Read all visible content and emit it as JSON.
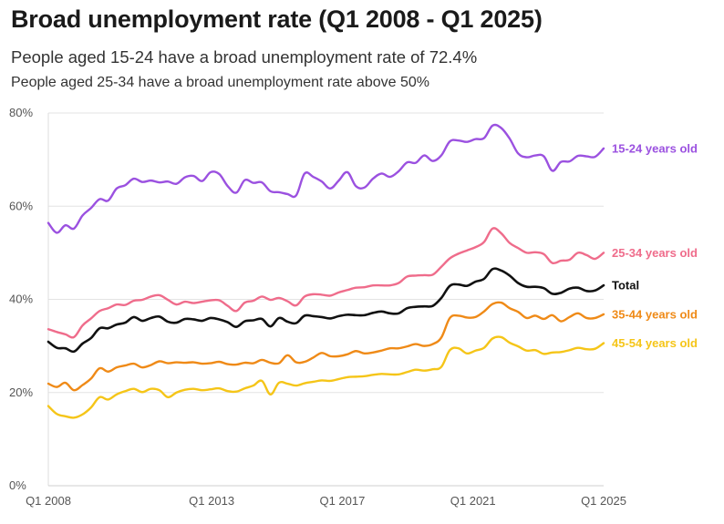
{
  "title": "Broad unemployment rate (Q1 2008 - Q1 2025)",
  "subtitle": "People aged 15-24 have a broad unemployment rate of 72.4%",
  "subtitle2": "People aged 25-34 have a broad unemployment rate above 50%",
  "chart_data": {
    "type": "line",
    "title": "Broad unemployment rate (Q1 2008 - Q1 2025)",
    "xlabel": "",
    "ylabel": "",
    "ylim": [
      0,
      80
    ],
    "grid": true,
    "x_start": 2008.0,
    "x_end": 2025.0,
    "x_ticks": [
      {
        "value": 2008,
        "label": "Q1 2008"
      },
      {
        "value": 2013,
        "label": "Q1 2013"
      },
      {
        "value": 2017,
        "label": "Q1 2017"
      },
      {
        "value": 2021,
        "label": "Q1 2021"
      },
      {
        "value": 2025,
        "label": "Q1 2025"
      }
    ],
    "y_ticks": [
      {
        "value": 0,
        "label": "0%"
      },
      {
        "value": 20,
        "label": "20%"
      },
      {
        "value": 40,
        "label": "40%"
      },
      {
        "value": 60,
        "label": "60%"
      },
      {
        "value": 80,
        "label": "80%"
      }
    ],
    "series": [
      {
        "name": "15-24 years old",
        "color": "#9B51E0",
        "values": [
          56.4,
          54.3,
          55.9,
          55.2,
          58.0,
          59.6,
          61.5,
          61.2,
          63.8,
          64.5,
          65.9,
          65.2,
          65.5,
          65.1,
          65.3,
          64.8,
          66.2,
          66.5,
          65.4,
          67.3,
          66.9,
          64.3,
          62.9,
          65.6,
          65.0,
          65.1,
          63.2,
          63.0,
          62.6,
          62.3,
          67.0,
          66.3,
          65.3,
          63.8,
          65.5,
          67.3,
          64.3,
          64.0,
          65.9,
          67.0,
          66.3,
          67.5,
          69.4,
          69.3,
          70.9,
          69.7,
          70.9,
          73.9,
          74.1,
          73.8,
          74.4,
          74.6,
          77.3,
          76.8,
          74.5,
          71.3,
          70.5,
          70.9,
          70.7,
          67.6,
          69.5,
          69.6,
          70.8,
          70.7,
          70.6,
          72.4
        ]
      },
      {
        "name": "25-34 years old",
        "color": "#EF6C8B",
        "values": [
          33.6,
          33.0,
          32.5,
          31.9,
          34.4,
          35.9,
          37.5,
          38.1,
          38.9,
          38.8,
          39.7,
          39.9,
          40.6,
          40.9,
          39.9,
          38.9,
          39.5,
          39.2,
          39.5,
          39.8,
          39.8,
          38.6,
          37.5,
          39.3,
          39.7,
          40.6,
          39.9,
          40.3,
          39.6,
          38.7,
          40.6,
          41.1,
          41.0,
          40.8,
          41.5,
          42.0,
          42.5,
          42.6,
          43.0,
          43.0,
          43.0,
          43.5,
          44.9,
          45.1,
          45.2,
          45.3,
          47.0,
          48.8,
          49.8,
          50.5,
          51.2,
          52.3,
          55.2,
          54.2,
          52.1,
          51.0,
          50.0,
          50.1,
          49.7,
          47.8,
          48.3,
          48.5,
          50.0,
          49.5,
          48.7,
          50.0
        ]
      },
      {
        "name": "Total",
        "color": "#111111",
        "values": [
          30.9,
          29.6,
          29.5,
          28.8,
          30.5,
          31.7,
          33.8,
          33.8,
          34.6,
          35.0,
          36.2,
          35.4,
          36.0,
          36.3,
          35.2,
          35.0,
          35.8,
          35.7,
          35.4,
          36.0,
          35.7,
          35.1,
          34.1,
          35.3,
          35.5,
          35.8,
          34.2,
          36.0,
          35.2,
          34.9,
          36.5,
          36.4,
          36.2,
          35.9,
          36.4,
          36.7,
          36.6,
          36.6,
          37.1,
          37.4,
          37.0,
          37.0,
          38.1,
          38.4,
          38.5,
          38.6,
          40.3,
          42.9,
          43.2,
          42.9,
          43.8,
          44.4,
          46.5,
          46.2,
          45.1,
          43.5,
          42.7,
          42.7,
          42.4,
          41.2,
          41.4,
          42.3,
          42.5,
          41.8,
          41.9,
          43.0
        ]
      },
      {
        "name": "35-44 years old",
        "color": "#EF8A17",
        "values": [
          21.9,
          21.2,
          22.1,
          20.5,
          21.6,
          23.0,
          25.2,
          24.5,
          25.4,
          25.8,
          26.2,
          25.4,
          25.9,
          26.7,
          26.3,
          26.5,
          26.4,
          26.5,
          26.2,
          26.3,
          26.6,
          26.1,
          26.0,
          26.4,
          26.3,
          27.0,
          26.4,
          26.3,
          28.0,
          26.5,
          26.6,
          27.5,
          28.5,
          27.8,
          27.8,
          28.2,
          28.9,
          28.4,
          28.6,
          29.0,
          29.5,
          29.5,
          29.9,
          30.4,
          30.0,
          30.4,
          31.8,
          36.0,
          36.5,
          36.1,
          36.2,
          37.4,
          39.0,
          39.3,
          38.1,
          37.3,
          36.0,
          36.5,
          35.8,
          36.6,
          35.3,
          36.2,
          37.0,
          36.0,
          36.0,
          36.8
        ]
      },
      {
        "name": "45-54 years old",
        "color": "#F5C518",
        "values": [
          17.1,
          15.4,
          14.9,
          14.6,
          15.3,
          16.8,
          19.0,
          18.5,
          19.6,
          20.3,
          20.8,
          20.1,
          20.8,
          20.5,
          19.0,
          20.0,
          20.6,
          20.8,
          20.5,
          20.7,
          20.9,
          20.3,
          20.2,
          20.9,
          21.5,
          22.5,
          19.6,
          22.1,
          21.9,
          21.5,
          22.0,
          22.3,
          22.6,
          22.5,
          22.9,
          23.3,
          23.4,
          23.5,
          23.8,
          24.0,
          23.9,
          23.9,
          24.4,
          24.9,
          24.7,
          25.0,
          25.5,
          29.1,
          29.5,
          28.4,
          29.0,
          29.6,
          31.6,
          31.9,
          30.7,
          29.9,
          29.0,
          29.1,
          28.3,
          28.6,
          28.7,
          29.1,
          29.6,
          29.3,
          29.4,
          30.6
        ]
      }
    ]
  }
}
